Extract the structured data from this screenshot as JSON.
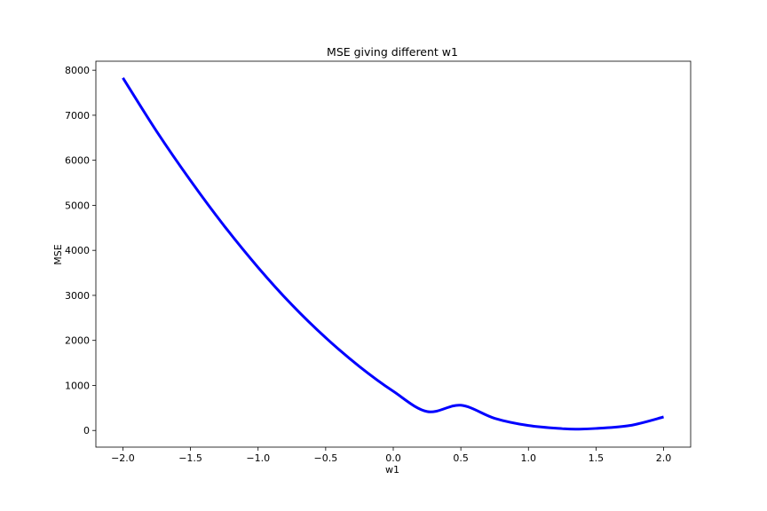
{
  "chart_data": {
    "type": "line",
    "title": "MSE giving different w1",
    "xlabel": "w1",
    "ylabel": "MSE",
    "xlim": [
      -2.2,
      2.2
    ],
    "ylim": [
      -370,
      8200
    ],
    "xticks": [
      -2.0,
      -1.5,
      -1.0,
      -0.5,
      0.0,
      0.5,
      1.0,
      1.5,
      2.0
    ],
    "xtick_labels": [
      "−2.0",
      "−1.5",
      "−1.0",
      "−0.5",
      "0.0",
      "0.5",
      "1.0",
      "1.5",
      "2.0"
    ],
    "yticks": [
      0,
      1000,
      2000,
      3000,
      4000,
      5000,
      6000,
      7000,
      8000
    ],
    "ytick_labels": [
      "0",
      "1000",
      "2000",
      "3000",
      "4000",
      "5000",
      "6000",
      "7000",
      "8000"
    ],
    "grid": false,
    "series": [
      {
        "color": "#0000ff",
        "x": [
          -2.0,
          -1.75,
          -1.5,
          -1.25,
          -1.0,
          -0.75,
          -0.5,
          -0.25,
          0.0,
          0.25,
          0.5,
          0.75,
          1.0,
          1.25,
          1.375,
          1.5,
          1.75,
          2.0
        ],
        "y": [
          7830,
          6640,
          5550,
          4540,
          3620,
          2790,
          2060,
          1420,
          870,
          420,
          560,
          270,
          110,
          40,
          30,
          45,
          110,
          300
        ]
      }
    ]
  }
}
